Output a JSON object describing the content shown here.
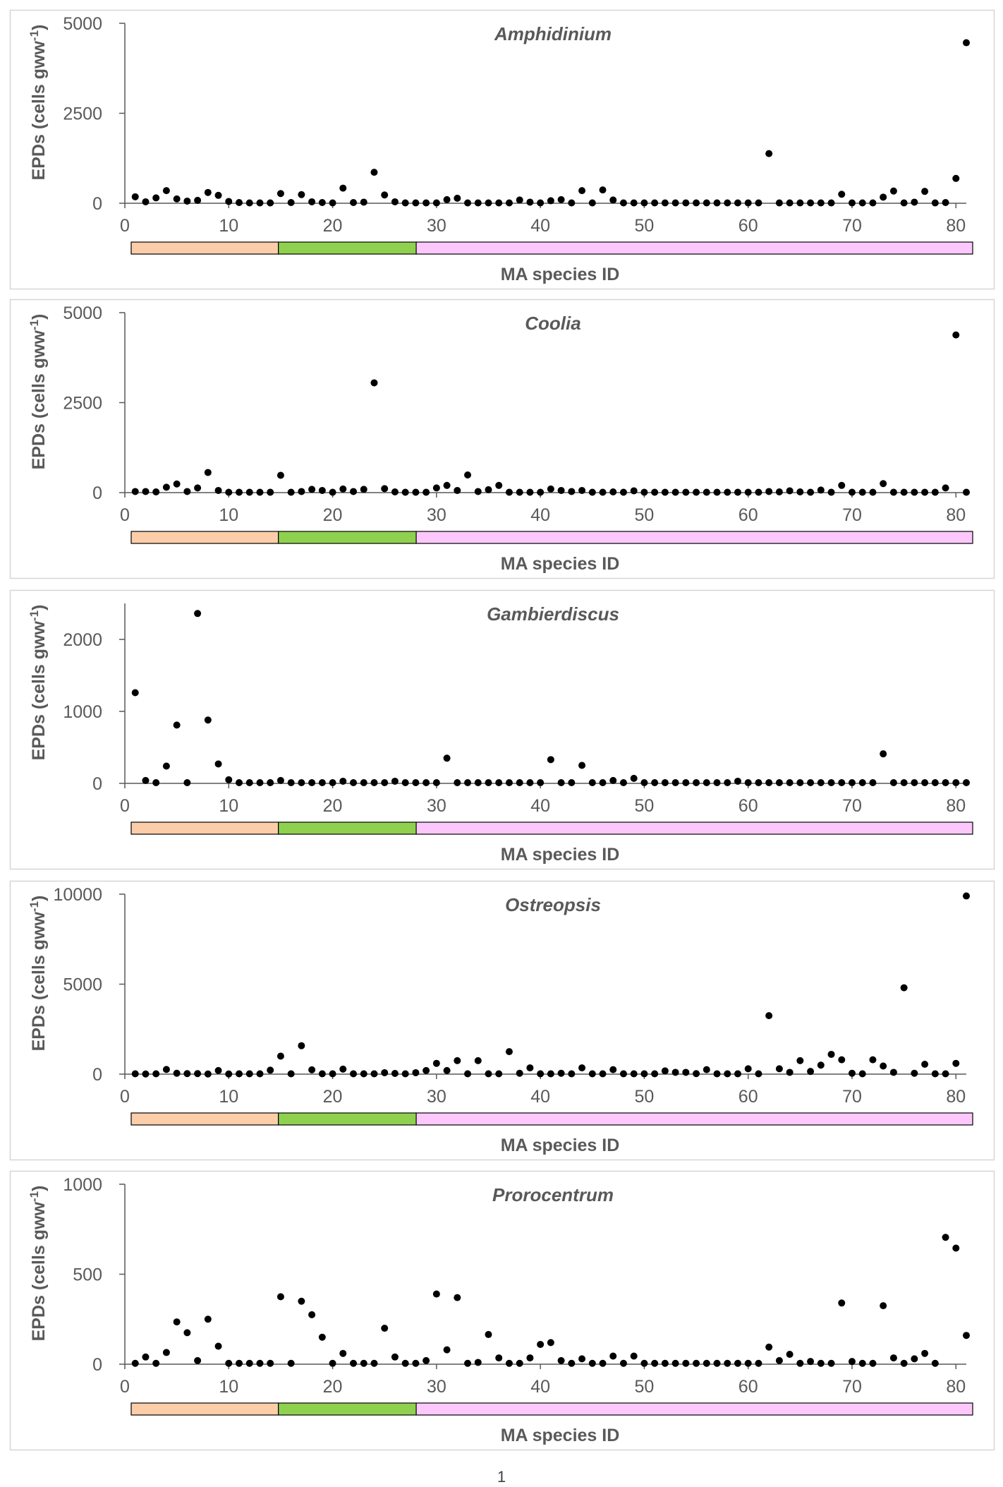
{
  "chart_data": [
    {
      "type": "scatter",
      "title": "Amphidinium",
      "ylabel": "EPDs (cells gww-1)",
      "ylabel_main": "EPDs (cells gww",
      "ylabel_sup": "-1",
      "ylabel_close": ")",
      "xlabel": "MA species ID",
      "xlim": [
        0,
        81
      ],
      "ylim": [
        0,
        5000
      ],
      "yticks": [
        0,
        2500,
        5000
      ],
      "xticks": [
        0,
        10,
        20,
        30,
        40,
        50,
        60,
        70,
        80
      ],
      "x": [
        1,
        2,
        3,
        4,
        5,
        6,
        7,
        8,
        9,
        10,
        11,
        12,
        13,
        14,
        15,
        16,
        17,
        18,
        19,
        20,
        21,
        22,
        23,
        24,
        25,
        26,
        27,
        28,
        29,
        30,
        31,
        32,
        33,
        34,
        35,
        36,
        37,
        38,
        39,
        40,
        41,
        42,
        43,
        44,
        45,
        46,
        47,
        48,
        49,
        50,
        51,
        52,
        53,
        54,
        55,
        56,
        57,
        58,
        59,
        60,
        61,
        62,
        63,
        64,
        65,
        66,
        67,
        68,
        69,
        70,
        71,
        72,
        73,
        74,
        75,
        76,
        77,
        78,
        79,
        80,
        81
      ],
      "y": [
        180,
        40,
        150,
        350,
        120,
        60,
        80,
        300,
        220,
        50,
        20,
        10,
        10,
        10,
        270,
        20,
        240,
        40,
        20,
        10,
        420,
        20,
        30,
        860,
        230,
        40,
        10,
        10,
        10,
        10,
        100,
        140,
        10,
        10,
        10,
        10,
        10,
        90,
        30,
        10,
        70,
        100,
        10,
        350,
        10,
        370,
        90,
        10,
        10,
        10,
        10,
        10,
        10,
        10,
        10,
        10,
        10,
        10,
        10,
        10,
        10,
        1380,
        10,
        10,
        10,
        10,
        10,
        10,
        250,
        10,
        10,
        10,
        170,
        340,
        10,
        30,
        330,
        10,
        20,
        690,
        4460
      ]
    },
    {
      "type": "scatter",
      "title": "Coolia",
      "ylabel": "EPDs (cells gww-1)",
      "ylabel_main": "EPDs (cells gww",
      "ylabel_sup": "-1",
      "ylabel_close": ")",
      "xlabel": "MA species ID",
      "xlim": [
        0,
        81
      ],
      "ylim": [
        0,
        5000
      ],
      "yticks": [
        0,
        2500,
        5000
      ],
      "xticks": [
        0,
        10,
        20,
        30,
        40,
        50,
        60,
        70,
        80
      ],
      "x": [
        1,
        2,
        3,
        4,
        5,
        6,
        7,
        8,
        9,
        10,
        11,
        12,
        13,
        14,
        15,
        16,
        17,
        18,
        19,
        20,
        21,
        22,
        23,
        24,
        25,
        26,
        27,
        28,
        29,
        30,
        31,
        32,
        33,
        34,
        35,
        36,
        37,
        38,
        39,
        40,
        41,
        42,
        43,
        44,
        45,
        46,
        47,
        48,
        49,
        50,
        51,
        52,
        53,
        54,
        55,
        56,
        57,
        58,
        59,
        60,
        61,
        62,
        63,
        64,
        65,
        66,
        67,
        68,
        69,
        70,
        71,
        72,
        73,
        74,
        75,
        76,
        77,
        78,
        79,
        80,
        81
      ],
      "y": [
        30,
        30,
        20,
        150,
        240,
        30,
        130,
        560,
        60,
        10,
        10,
        10,
        10,
        10,
        480,
        10,
        30,
        90,
        60,
        10,
        100,
        30,
        90,
        3050,
        110,
        20,
        10,
        10,
        10,
        130,
        200,
        60,
        490,
        30,
        80,
        200,
        10,
        10,
        10,
        10,
        100,
        60,
        30,
        60,
        10,
        10,
        20,
        10,
        50,
        10,
        10,
        10,
        10,
        10,
        10,
        10,
        10,
        10,
        10,
        10,
        10,
        30,
        20,
        50,
        20,
        10,
        70,
        10,
        200,
        10,
        10,
        10,
        250,
        10,
        10,
        10,
        10,
        10,
        130,
        4380,
        10
      ]
    },
    {
      "type": "scatter",
      "title": "Gambierdiscus",
      "ylabel": "EPDs (cells gww-1)",
      "ylabel_main": "EPDs (cells gww",
      "ylabel_sup": "-1",
      "ylabel_close": ")",
      "xlabel": "MA species ID",
      "xlim": [
        0,
        81
      ],
      "ylim": [
        0,
        2500
      ],
      "yticks": [
        0,
        1000,
        2000
      ],
      "xticks": [
        0,
        10,
        20,
        30,
        40,
        50,
        60,
        70,
        80
      ],
      "x": [
        1,
        2,
        3,
        4,
        5,
        6,
        7,
        8,
        9,
        10,
        11,
        12,
        13,
        14,
        15,
        16,
        17,
        18,
        19,
        20,
        21,
        22,
        23,
        24,
        25,
        26,
        27,
        28,
        29,
        30,
        31,
        32,
        33,
        34,
        35,
        36,
        37,
        38,
        39,
        40,
        41,
        42,
        43,
        44,
        45,
        46,
        47,
        48,
        49,
        50,
        51,
        52,
        53,
        54,
        55,
        56,
        57,
        58,
        59,
        60,
        61,
        62,
        63,
        64,
        65,
        66,
        67,
        68,
        69,
        70,
        71,
        72,
        73,
        74,
        75,
        76,
        77,
        78,
        79,
        80,
        81
      ],
      "y": [
        1260,
        40,
        10,
        240,
        810,
        10,
        2360,
        880,
        270,
        50,
        10,
        10,
        10,
        10,
        40,
        10,
        10,
        10,
        10,
        10,
        30,
        10,
        10,
        10,
        10,
        30,
        10,
        10,
        10,
        10,
        350,
        10,
        10,
        10,
        10,
        10,
        10,
        10,
        10,
        10,
        330,
        10,
        10,
        250,
        10,
        10,
        40,
        10,
        70,
        10,
        10,
        10,
        10,
        10,
        10,
        10,
        10,
        10,
        30,
        10,
        10,
        10,
        10,
        10,
        10,
        10,
        10,
        10,
        10,
        10,
        10,
        10,
        410,
        10,
        10,
        10,
        10,
        10,
        10,
        10,
        10
      ]
    },
    {
      "type": "scatter",
      "title": "Ostreopsis",
      "ylabel": "EPDs (cells gww-1)",
      "ylabel_main": "EPDs (cells gww",
      "ylabel_sup": "-1",
      "ylabel_close": ")",
      "xlabel": "MA species ID",
      "xlim": [
        0,
        81
      ],
      "ylim": [
        0,
        10000
      ],
      "yticks": [
        0,
        5000,
        10000
      ],
      "xticks": [
        0,
        10,
        20,
        30,
        40,
        50,
        60,
        70,
        80
      ],
      "x": [
        1,
        2,
        3,
        4,
        5,
        6,
        7,
        8,
        9,
        10,
        11,
        12,
        13,
        14,
        15,
        16,
        17,
        18,
        19,
        20,
        21,
        22,
        23,
        24,
        25,
        26,
        27,
        28,
        29,
        30,
        31,
        32,
        33,
        34,
        35,
        36,
        37,
        38,
        39,
        40,
        41,
        42,
        43,
        44,
        45,
        46,
        47,
        48,
        49,
        50,
        51,
        52,
        53,
        54,
        55,
        56,
        57,
        58,
        59,
        60,
        61,
        62,
        63,
        64,
        65,
        66,
        67,
        68,
        69,
        70,
        71,
        72,
        73,
        74,
        75,
        76,
        77,
        78,
        79,
        80,
        81
      ],
      "y": [
        20,
        10,
        20,
        260,
        50,
        30,
        30,
        10,
        200,
        10,
        20,
        20,
        20,
        220,
        1000,
        20,
        1580,
        240,
        20,
        20,
        280,
        20,
        20,
        20,
        80,
        40,
        20,
        80,
        200,
        600,
        200,
        750,
        20,
        750,
        20,
        20,
        1250,
        50,
        350,
        20,
        20,
        50,
        20,
        350,
        20,
        20,
        250,
        20,
        20,
        20,
        20,
        180,
        100,
        100,
        30,
        250,
        20,
        20,
        20,
        300,
        20,
        3250,
        300,
        100,
        750,
        150,
        500,
        1100,
        800,
        50,
        20,
        800,
        450,
        100,
        4800,
        50,
        550,
        20,
        20,
        600,
        9900
      ]
    },
    {
      "type": "scatter",
      "title": "Prorocentrum",
      "ylabel": "EPDs (cells gww-1)",
      "ylabel_main": "EPDs (cells gww",
      "ylabel_sup": "-1",
      "ylabel_close": ")",
      "xlabel": "MA species ID",
      "xlim": [
        0,
        81
      ],
      "ylim": [
        0,
        1000
      ],
      "yticks": [
        0,
        500,
        1000
      ],
      "xticks": [
        0,
        10,
        20,
        30,
        40,
        50,
        60,
        70,
        80
      ],
      "x": [
        1,
        2,
        3,
        4,
        5,
        6,
        7,
        8,
        9,
        10,
        11,
        12,
        13,
        14,
        15,
        16,
        17,
        18,
        19,
        20,
        21,
        22,
        23,
        24,
        25,
        26,
        27,
        28,
        29,
        30,
        31,
        32,
        33,
        34,
        35,
        36,
        37,
        38,
        39,
        40,
        41,
        42,
        43,
        44,
        45,
        46,
        47,
        48,
        49,
        50,
        51,
        52,
        53,
        54,
        55,
        56,
        57,
        58,
        59,
        60,
        61,
        62,
        63,
        64,
        65,
        66,
        67,
        68,
        69,
        70,
        71,
        72,
        73,
        74,
        75,
        76,
        77,
        78,
        79,
        80,
        81
      ],
      "y": [
        5,
        40,
        5,
        65,
        235,
        175,
        20,
        250,
        100,
        5,
        5,
        5,
        5,
        5,
        375,
        5,
        350,
        275,
        150,
        5,
        60,
        5,
        5,
        5,
        200,
        40,
        5,
        5,
        20,
        390,
        80,
        370,
        5,
        10,
        165,
        35,
        5,
        5,
        35,
        110,
        120,
        20,
        5,
        30,
        5,
        5,
        45,
        5,
        45,
        5,
        5,
        5,
        5,
        5,
        5,
        5,
        5,
        5,
        5,
        5,
        5,
        95,
        20,
        55,
        5,
        15,
        5,
        5,
        340,
        15,
        5,
        5,
        325,
        35,
        5,
        30,
        60,
        5,
        705,
        645,
        160
      ]
    }
  ],
  "group_bar": {
    "segments": [
      {
        "name": "group-1",
        "start": 0.7,
        "end": 14.8,
        "color": "#fbcda8"
      },
      {
        "name": "group-2",
        "start": 14.8,
        "end": 28,
        "color": "#8fd14f"
      },
      {
        "name": "group-3",
        "start": 28,
        "end": 81.3,
        "color": "#fcc8fc"
      }
    ]
  },
  "colors": {
    "panel_border": "#d6d6d6",
    "axis": "#595959",
    "text": "#595959",
    "point": "#000000"
  },
  "page_number": "1"
}
